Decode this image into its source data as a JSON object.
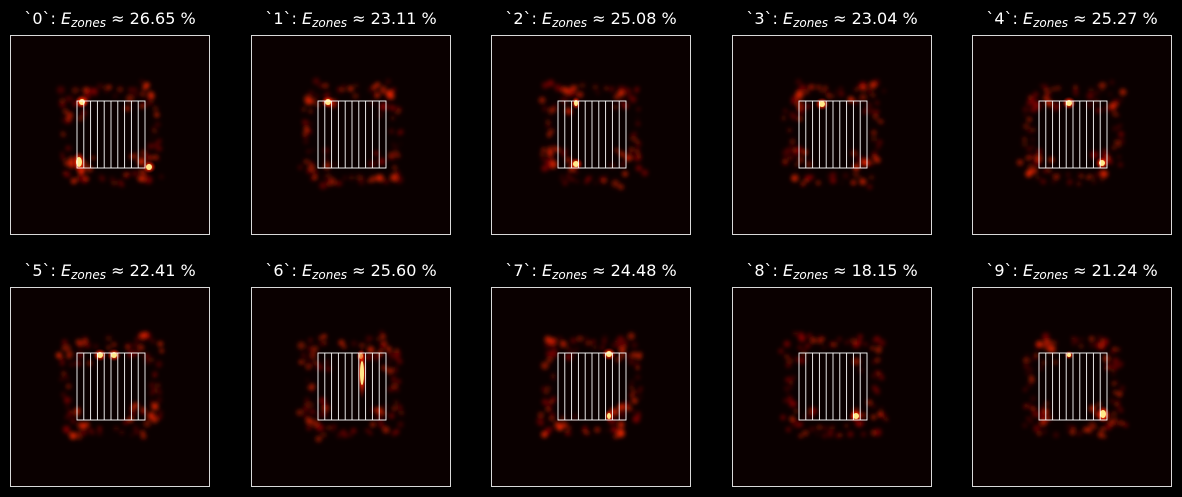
{
  "colors": {
    "background": "#000000",
    "field_background": "#0a0000",
    "frame_stroke": "#d8d8d8",
    "zone_stroke": "#ffffff",
    "hot_low": "#8b0000",
    "hot_mid": "#ff2a00",
    "hot_high": "#ffe98a"
  },
  "colormap": "hot",
  "zones_per_panel": 10,
  "panels": [
    {
      "label": "`0`",
      "symbol": "E",
      "subscript": "zones",
      "relation": "≈",
      "value": "26.65",
      "unit": "%"
    },
    {
      "label": "`1`",
      "symbol": "E",
      "subscript": "zones",
      "relation": "≈",
      "value": "23.11",
      "unit": "%"
    },
    {
      "label": "`2`",
      "symbol": "E",
      "subscript": "zones",
      "relation": "≈",
      "value": "25.08",
      "unit": "%"
    },
    {
      "label": "`3`",
      "symbol": "E",
      "subscript": "zones",
      "relation": "≈",
      "value": "23.04",
      "unit": "%"
    },
    {
      "label": "`4`",
      "symbol": "E",
      "subscript": "zones",
      "relation": "≈",
      "value": "25.27",
      "unit": "%"
    },
    {
      "label": "`5`",
      "symbol": "E",
      "subscript": "zones",
      "relation": "≈",
      "value": "22.41",
      "unit": "%"
    },
    {
      "label": "`6`",
      "symbol": "E",
      "subscript": "zones",
      "relation": "≈",
      "value": "25.60",
      "unit": "%"
    },
    {
      "label": "`7`",
      "symbol": "E",
      "subscript": "zones",
      "relation": "≈",
      "value": "24.48",
      "unit": "%"
    },
    {
      "label": "`8`",
      "symbol": "E",
      "subscript": "zones",
      "relation": "≈",
      "value": "18.15",
      "unit": "%"
    },
    {
      "label": "`9`",
      "symbol": "E",
      "subscript": "zones",
      "relation": "≈",
      "value": "21.24",
      "unit": "%"
    }
  ]
}
